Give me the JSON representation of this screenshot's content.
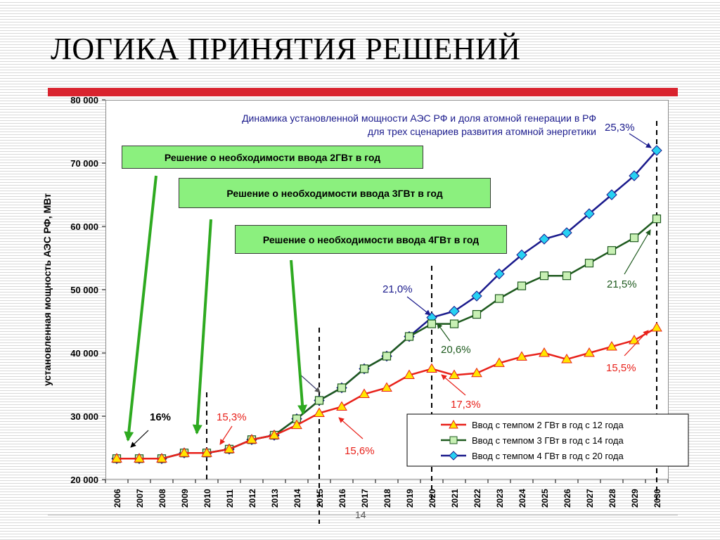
{
  "slide": {
    "title": "ЛОГИКА ПРИНЯТИЯ РЕШЕНИЙ",
    "page_number": "14",
    "accent_color": "#d9232e"
  },
  "notes": [
    "Решение о необходимости ввода 2ГВт в год",
    "Решение о необходимости ввода 3ГВт в год",
    "Решение о необходимости ввода 4ГВт в год"
  ],
  "chart_data": {
    "type": "line",
    "title": "Динамика установленной мощности АЭС РФ и доля атомной генерации в РФ для трех сценариев развития атомной энергетики",
    "title_lines": [
      "Динамика установленной мощности АЭС РФ и доля атомной генерации в РФ",
      "для трех сценариев развития атомной энергетики"
    ],
    "ylabel": "установленная мощность АЭС РФ, МВт",
    "xlabel": "",
    "ylim": [
      20000,
      80000
    ],
    "yticks": [
      20000,
      30000,
      40000,
      50000,
      60000,
      70000,
      80000
    ],
    "ytick_labels": [
      "20 000",
      "30 000",
      "40 000",
      "50 000",
      "60 000",
      "70 000",
      "80 000"
    ],
    "categories": [
      "2006",
      "2007",
      "2008",
      "2009",
      "2010",
      "2011",
      "2012",
      "2013",
      "2014",
      "2015",
      "2016",
      "2017",
      "2018",
      "2019",
      "2020",
      "2021",
      "2022",
      "2023",
      "2024",
      "2025",
      "2026",
      "2027",
      "2028",
      "2029",
      "2030"
    ],
    "grid": false,
    "legend_position": "bottom-right",
    "series": [
      {
        "name": "Ввод с темпом 2 ГВт в год с 12 года",
        "color": "#e8211a",
        "marker": "triangle",
        "marker_color": "#ffe600",
        "values": [
          23300,
          23300,
          23300,
          24200,
          24200,
          24800,
          26300,
          27000,
          28600,
          30500,
          31500,
          33500,
          34500,
          36500,
          37500,
          36500,
          36800,
          38400,
          39400,
          40000,
          39000,
          40000,
          41000,
          42000,
          44000
        ]
      },
      {
        "name": "Ввод с темпом 3 ГВт в год с 14 года",
        "color": "#1e5a1e",
        "marker": "square",
        "marker_color": "#c8f0b4",
        "values": [
          23300,
          23300,
          23300,
          24200,
          24200,
          24800,
          26300,
          27000,
          29600,
          32500,
          34500,
          37500,
          39500,
          42600,
          44600,
          44600,
          46100,
          48600,
          50600,
          52200,
          52200,
          54200,
          56200,
          58200,
          61200
        ]
      },
      {
        "name": "Ввод с темпом 4 ГВт в год с 20 года",
        "color": "#1a1a8c",
        "marker": "diamond",
        "marker_color": "#27d1f2",
        "values": [
          23300,
          23300,
          23300,
          24200,
          24200,
          24800,
          26300,
          27000,
          29600,
          32500,
          34500,
          37500,
          39500,
          42600,
          45600,
          46600,
          49000,
          52500,
          55500,
          58000,
          59000,
          62000,
          65000,
          68000,
          72000
        ]
      }
    ],
    "annotations": [
      {
        "text": "16%",
        "color": "#000000"
      },
      {
        "text": "15,3%",
        "color": "#e8211a"
      },
      {
        "text": "15,6%",
        "color": "#e8211a"
      },
      {
        "text": "17,3%",
        "color": "#e8211a"
      },
      {
        "text": "15,5%",
        "color": "#e8211a"
      },
      {
        "text": "20,6%",
        "color": "#1e5a1e"
      },
      {
        "text": "21,5%",
        "color": "#1e5a1e"
      },
      {
        "text": "21,0%",
        "color": "#1a1a8c"
      },
      {
        "text": "25,3%",
        "color": "#1a1a8c"
      }
    ]
  }
}
